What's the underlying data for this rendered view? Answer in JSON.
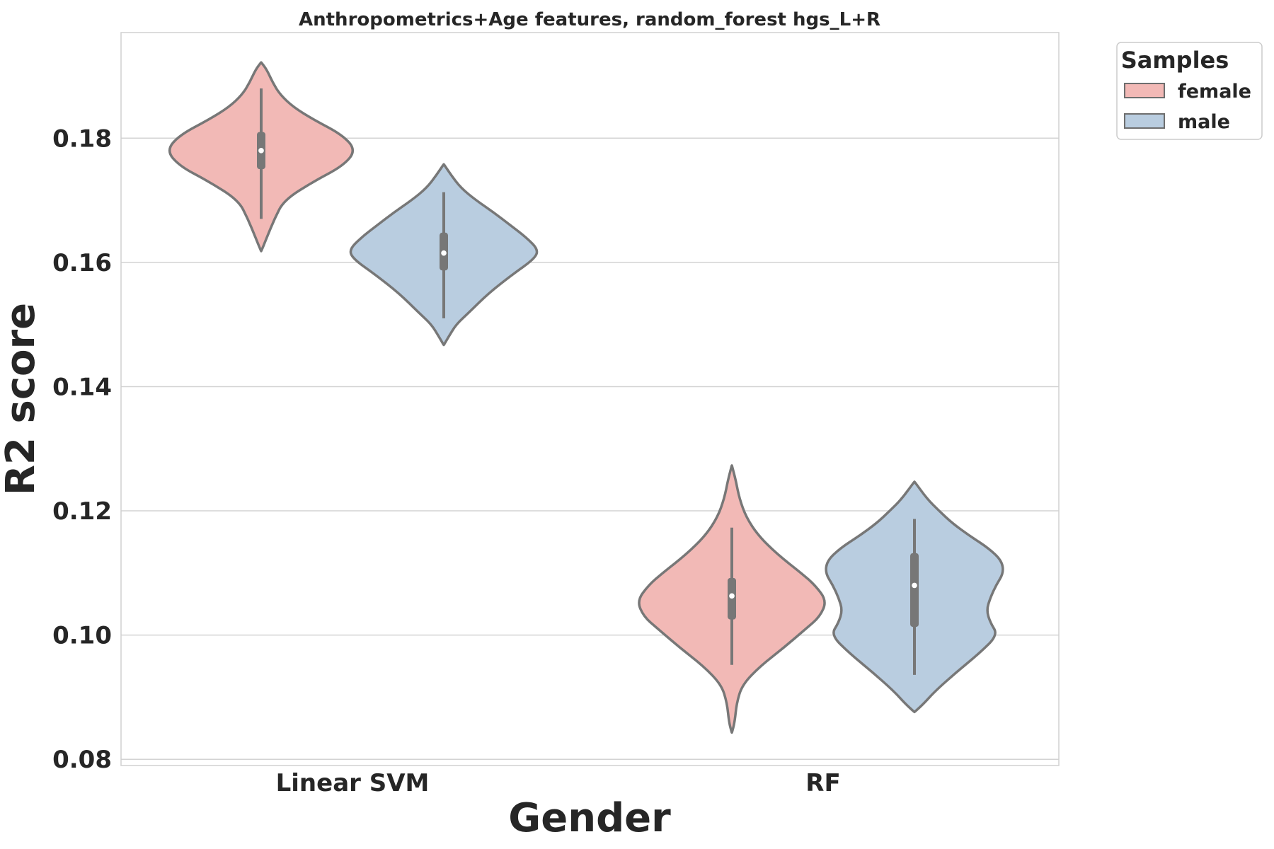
{
  "chart_data": {
    "type": "violin",
    "title": "Anthropometrics+Age features, random_forest hgs_L+R",
    "xlabel": "Gender",
    "ylabel": "R2 score",
    "ylim": [
      0.079,
      0.197
    ],
    "yticks": [
      "0.08",
      "0.10",
      "0.12",
      "0.14",
      "0.16",
      "0.18"
    ],
    "categories": [
      "Linear SVM",
      "RF"
    ],
    "grid": "horizontal",
    "legend": {
      "title": "Samples",
      "placement": "outside top-right",
      "entries": [
        {
          "label": "female",
          "color": "#f2b9b6"
        },
        {
          "label": "male",
          "color": "#b9cde0"
        }
      ]
    },
    "series": [
      {
        "name": "female",
        "color": "#f2b9b6",
        "violins": [
          {
            "category": "Linear SVM",
            "median": 0.178,
            "q1": 0.175,
            "q3": 0.181,
            "whisker_low": 0.167,
            "whisker_high": 0.188,
            "min": 0.1618,
            "max": 0.1922,
            "profile": [
              [
                0.1618,
                0.001
              ],
              [
                0.164,
                0.06
              ],
              [
                0.167,
                0.14
              ],
              [
                0.17,
                0.24
              ],
              [
                0.173,
                0.55
              ],
              [
                0.1755,
                0.86
              ],
              [
                0.178,
                1.0
              ],
              [
                0.1805,
                0.86
              ],
              [
                0.183,
                0.55
              ],
              [
                0.185,
                0.34
              ],
              [
                0.187,
                0.2
              ],
              [
                0.189,
                0.12
              ],
              [
                0.191,
                0.06
              ],
              [
                0.1922,
                0.001
              ]
            ]
          },
          {
            "category": "RF",
            "median": 0.1063,
            "q1": 0.1025,
            "q3": 0.1092,
            "whisker_low": 0.0952,
            "whisker_high": 0.1173,
            "min": 0.0843,
            "max": 0.1273,
            "profile": [
              [
                0.0843,
                0.001
              ],
              [
                0.086,
                0.03
              ],
              [
                0.089,
                0.05
              ],
              [
                0.092,
                0.11
              ],
              [
                0.095,
                0.3
              ],
              [
                0.098,
                0.55
              ],
              [
                0.101,
                0.78
              ],
              [
                0.103,
                0.93
              ],
              [
                0.1055,
                1.0
              ],
              [
                0.108,
                0.88
              ],
              [
                0.11,
                0.73
              ],
              [
                0.113,
                0.48
              ],
              [
                0.116,
                0.28
              ],
              [
                0.119,
                0.15
              ],
              [
                0.122,
                0.08
              ],
              [
                0.125,
                0.04
              ],
              [
                0.1273,
                0.001
              ]
            ]
          }
        ]
      },
      {
        "name": "male",
        "color": "#b9cde0",
        "violins": [
          {
            "category": "Linear SVM",
            "median": 0.1615,
            "q1": 0.1587,
            "q3": 0.1648,
            "whisker_low": 0.151,
            "whisker_high": 0.1713,
            "min": 0.1467,
            "max": 0.1758,
            "profile": [
              [
                0.1467,
                0.001
              ],
              [
                0.148,
                0.05
              ],
              [
                0.15,
                0.13
              ],
              [
                0.152,
                0.27
              ],
              [
                0.155,
                0.47
              ],
              [
                0.158,
                0.72
              ],
              [
                0.1605,
                0.95
              ],
              [
                0.162,
                1.0
              ],
              [
                0.164,
                0.87
              ],
              [
                0.166,
                0.7
              ],
              [
                0.168,
                0.53
              ],
              [
                0.17,
                0.34
              ],
              [
                0.172,
                0.18
              ],
              [
                0.174,
                0.08
              ],
              [
                0.1758,
                0.001
              ]
            ]
          },
          {
            "category": "RF",
            "median": 0.108,
            "q1": 0.1013,
            "q3": 0.1132,
            "whisker_low": 0.0936,
            "whisker_high": 0.1187,
            "min": 0.0876,
            "max": 0.1247,
            "profile": [
              [
                0.0876,
                0.001
              ],
              [
                0.089,
                0.1
              ],
              [
                0.091,
                0.22
              ],
              [
                0.094,
                0.44
              ],
              [
                0.097,
                0.68
              ],
              [
                0.1,
                0.88
              ],
              [
                0.102,
                0.8
              ],
              [
                0.104,
                0.76
              ],
              [
                0.106,
                0.8
              ],
              [
                0.108,
                0.86
              ],
              [
                0.11,
                0.94
              ],
              [
                0.112,
                0.92
              ],
              [
                0.114,
                0.78
              ],
              [
                0.116,
                0.58
              ],
              [
                0.118,
                0.4
              ],
              [
                0.12,
                0.26
              ],
              [
                0.122,
                0.13
              ],
              [
                0.1247,
                0.001
              ]
            ]
          }
        ]
      }
    ]
  }
}
